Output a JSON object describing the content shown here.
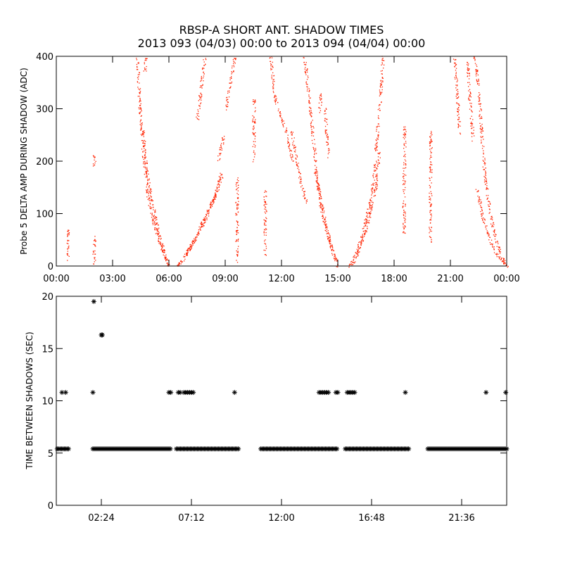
{
  "title": {
    "line1": "RBSP-A SHORT ANT. SHADOW TIMES",
    "line2": "2013 093 (04/03) 00:00 to 2013 094 (04/04) 00:00"
  },
  "chart_data": [
    {
      "type": "scatter",
      "name": "shadow-amplitude",
      "ylabel": "Probe 5 DELTA AMP DURING SHADOW (ADC)",
      "xlabel": "",
      "x_unit": "hours since 2013-04-03 00:00",
      "xlim": [
        0,
        24
      ],
      "ylim": [
        0,
        400
      ],
      "xticks": [
        0,
        3,
        6,
        9,
        12,
        15,
        18,
        21,
        24
      ],
      "xtick_labels": [
        "00:00",
        "03:00",
        "06:00",
        "09:00",
        "12:00",
        "15:00",
        "18:00",
        "21:00",
        "00:00"
      ],
      "yticks": [
        0,
        100,
        200,
        300,
        400
      ],
      "ytick_labels": [
        "0",
        "100",
        "200",
        "300",
        "400"
      ],
      "grid": false,
      "color": "#ff2200",
      "segments": [
        {
          "x": [
            0.6,
            0.62
          ],
          "y": [
            10,
            70
          ]
        },
        {
          "x": [
            2.0,
            2.02
          ],
          "y": [
            5,
            60
          ]
        },
        {
          "x": [
            2.0,
            2.02
          ],
          "y": [
            190,
            215
          ]
        },
        {
          "x": [
            4.3,
            4.45,
            4.65,
            4.9,
            5.2,
            5.5,
            5.75,
            6.0
          ],
          "y": [
            400,
            300,
            200,
            130,
            80,
            45,
            20,
            0
          ]
        },
        {
          "x": [
            4.6,
            4.8,
            5.1,
            5.4,
            5.7,
            6.0
          ],
          "y": [
            260,
            180,
            120,
            70,
            30,
            0
          ]
        },
        {
          "x": [
            4.7,
            4.75
          ],
          "y": [
            370,
            400
          ]
        },
        {
          "x": [
            6.4,
            6.8,
            7.2,
            7.6,
            8.0,
            8.4,
            8.8
          ],
          "y": [
            0,
            15,
            40,
            70,
            100,
            130,
            170
          ]
        },
        {
          "x": [
            6.6,
            7.0,
            7.5,
            8.0,
            8.5,
            8.8
          ],
          "y": [
            5,
            30,
            60,
            95,
            140,
            180
          ]
        },
        {
          "x": [
            7.5,
            7.7,
            7.9
          ],
          "y": [
            280,
            340,
            400
          ]
        },
        {
          "x": [
            8.6,
            8.8,
            8.9
          ],
          "y": [
            200,
            230,
            250
          ]
        },
        {
          "x": [
            9.0,
            9.3,
            9.5
          ],
          "y": [
            300,
            360,
            400
          ]
        },
        {
          "x": [
            9.6,
            9.62
          ],
          "y": [
            5,
            170
          ]
        },
        {
          "x": [
            10.5,
            10.52
          ],
          "y": [
            200,
            320
          ]
        },
        {
          "x": [
            11.1,
            11.12
          ],
          "y": [
            20,
            150
          ]
        },
        {
          "x": [
            11.4,
            11.6,
            11.8,
            12.0,
            12.2,
            12.4,
            12.6
          ],
          "y": [
            400,
            330,
            300,
            280,
            260,
            230,
            200
          ]
        },
        {
          "x": [
            12.5,
            12.7,
            12.9,
            13.1,
            13.3
          ],
          "y": [
            260,
            220,
            180,
            150,
            120
          ]
        },
        {
          "x": [
            13.2,
            13.4,
            13.6,
            13.8,
            14.0,
            14.3,
            14.6,
            14.9
          ],
          "y": [
            400,
            340,
            270,
            200,
            130,
            80,
            40,
            10
          ]
        },
        {
          "x": [
            13.8,
            14.1,
            14.4,
            14.7,
            15.0
          ],
          "y": [
            180,
            120,
            70,
            30,
            0
          ]
        },
        {
          "x": [
            14.0,
            14.1
          ],
          "y": [
            290,
            330
          ]
        },
        {
          "x": [
            14.3,
            14.4,
            14.5
          ],
          "y": [
            300,
            250,
            210
          ]
        },
        {
          "x": [
            15.6,
            15.9,
            16.2,
            16.5,
            16.8,
            17.0
          ],
          "y": [
            0,
            20,
            50,
            90,
            140,
            200
          ]
        },
        {
          "x": [
            15.8,
            16.1,
            16.4,
            16.7,
            17.0,
            17.2
          ],
          "y": [
            5,
            30,
            60,
            100,
            150,
            220
          ]
        },
        {
          "x": [
            17.0,
            17.2,
            17.4
          ],
          "y": [
            220,
            300,
            400
          ]
        },
        {
          "x": [
            18.5,
            18.55
          ],
          "y": [
            60,
            270
          ]
        },
        {
          "x": [
            19.9,
            19.95
          ],
          "y": [
            40,
            260
          ]
        },
        {
          "x": [
            21.2,
            21.3,
            21.4,
            21.5
          ],
          "y": [
            400,
            350,
            300,
            250
          ]
        },
        {
          "x": [
            21.9,
            22.0,
            22.1,
            22.2
          ],
          "y": [
            390,
            330,
            280,
            240
          ]
        },
        {
          "x": [
            22.3,
            22.5,
            22.8,
            23.1,
            23.4,
            23.7,
            24.0
          ],
          "y": [
            400,
            330,
            180,
            100,
            50,
            20,
            0
          ]
        },
        {
          "x": [
            22.4,
            22.6,
            22.9,
            23.2,
            23.5,
            23.8,
            24.0
          ],
          "y": [
            150,
            110,
            70,
            40,
            20,
            8,
            0
          ]
        }
      ]
    },
    {
      "type": "scatter",
      "name": "time-between-shadows",
      "ylabel": "TIME BETWEEN SHADOWS (SEC)",
      "xlabel": "",
      "x_unit": "hours since 2013-04-03 00:00",
      "xlim": [
        0,
        24
      ],
      "ylim": [
        0,
        20
      ],
      "xticks": [
        2.4,
        7.2,
        12.0,
        16.8,
        21.6
      ],
      "xtick_labels": [
        "02:24",
        "07:12",
        "12:00",
        "16:48",
        "21:36"
      ],
      "yticks": [
        0,
        5,
        10,
        15,
        20
      ],
      "ytick_labels": [
        "0",
        "5",
        "10",
        "15",
        "20"
      ],
      "grid": false,
      "color": "#000000",
      "marker": "*",
      "runs": [
        {
          "y": 5.4,
          "x_start": 0.05,
          "x_end": 0.7
        },
        {
          "y": 5.4,
          "x_start": 1.95,
          "x_end": 6.1
        },
        {
          "y": 5.4,
          "x_start": 6.4,
          "x_end": 9.7
        },
        {
          "y": 5.4,
          "x_start": 10.9,
          "x_end": 15.0
        },
        {
          "y": 5.4,
          "x_start": 15.4,
          "x_end": 18.8
        },
        {
          "y": 5.4,
          "x_start": 19.8,
          "x_end": 24.0
        }
      ],
      "points": [
        {
          "x": 0.3,
          "y": 10.8
        },
        {
          "x": 0.5,
          "y": 10.8
        },
        {
          "x": 1.95,
          "y": 10.8
        },
        {
          "x": 2.0,
          "y": 19.5
        },
        {
          "x": 2.4,
          "y": 16.3
        },
        {
          "x": 2.45,
          "y": 16.3
        },
        {
          "x": 6.0,
          "y": 10.8
        },
        {
          "x": 6.1,
          "y": 10.8
        },
        {
          "x": 6.5,
          "y": 10.8
        },
        {
          "x": 6.6,
          "y": 10.8
        },
        {
          "x": 6.8,
          "y": 10.8
        },
        {
          "x": 6.9,
          "y": 10.8
        },
        {
          "x": 7.0,
          "y": 10.8
        },
        {
          "x": 7.1,
          "y": 10.8
        },
        {
          "x": 7.2,
          "y": 10.8
        },
        {
          "x": 7.3,
          "y": 10.8
        },
        {
          "x": 9.5,
          "y": 10.8
        },
        {
          "x": 14.0,
          "y": 10.8
        },
        {
          "x": 14.1,
          "y": 10.8
        },
        {
          "x": 14.2,
          "y": 10.8
        },
        {
          "x": 14.3,
          "y": 10.8
        },
        {
          "x": 14.4,
          "y": 10.8
        },
        {
          "x": 14.5,
          "y": 10.8
        },
        {
          "x": 14.9,
          "y": 10.8
        },
        {
          "x": 15.0,
          "y": 10.8
        },
        {
          "x": 15.5,
          "y": 10.8
        },
        {
          "x": 15.6,
          "y": 10.8
        },
        {
          "x": 15.7,
          "y": 10.8
        },
        {
          "x": 15.8,
          "y": 10.8
        },
        {
          "x": 15.9,
          "y": 10.8
        },
        {
          "x": 18.6,
          "y": 10.8
        },
        {
          "x": 22.9,
          "y": 10.8
        },
        {
          "x": 23.95,
          "y": 10.8
        }
      ]
    }
  ]
}
